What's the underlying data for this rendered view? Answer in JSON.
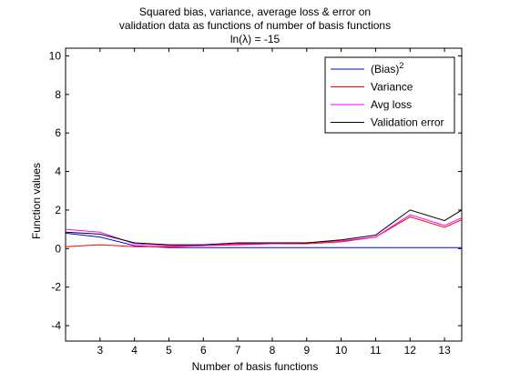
{
  "chart_data": {
    "type": "line",
    "title": [
      "Squared bias, variance, average loss & error on",
      "validation data as functions of number of basis functions",
      "ln(λ) = -15"
    ],
    "xlabel": "Number of basis functions",
    "ylabel": "Function values",
    "xlim": [
      2,
      13.5
    ],
    "ylim": [
      -4.8,
      10.4
    ],
    "xticks": [
      3,
      4,
      5,
      6,
      7,
      8,
      9,
      10,
      11,
      12,
      13
    ],
    "yticks": [
      -4,
      -2,
      0,
      2,
      4,
      6,
      8,
      10
    ],
    "grid": false,
    "legend": {
      "placement": "top-right"
    },
    "x": [
      2,
      3,
      4,
      5,
      6,
      7,
      8,
      9,
      10,
      11,
      12,
      13,
      13.5
    ],
    "series": [
      {
        "name": "(Bias)",
        "name_sup": "2",
        "color": "#0000ff",
        "values": [
          0.8,
          0.6,
          0.15,
          0.05,
          0.05,
          0.05,
          0.05,
          0.05,
          0.05,
          0.05,
          0.05,
          0.05,
          0.05
        ]
      },
      {
        "name": "Variance",
        "name_sup": "",
        "color": "#ff0000",
        "values": [
          0.1,
          0.2,
          0.1,
          0.1,
          0.15,
          0.2,
          0.25,
          0.25,
          0.35,
          0.6,
          1.65,
          1.1,
          1.5
        ]
      },
      {
        "name": "Avg loss",
        "name_sup": "",
        "color": "#ff00ff",
        "values": [
          1.0,
          0.85,
          0.25,
          0.15,
          0.15,
          0.25,
          0.25,
          0.3,
          0.4,
          0.6,
          1.75,
          1.2,
          1.6
        ]
      },
      {
        "name": "Validation error",
        "name_sup": "",
        "color": "#000000",
        "values": [
          0.85,
          0.75,
          0.3,
          0.2,
          0.2,
          0.3,
          0.3,
          0.3,
          0.45,
          0.7,
          2.0,
          1.45,
          2.0
        ]
      }
    ]
  }
}
